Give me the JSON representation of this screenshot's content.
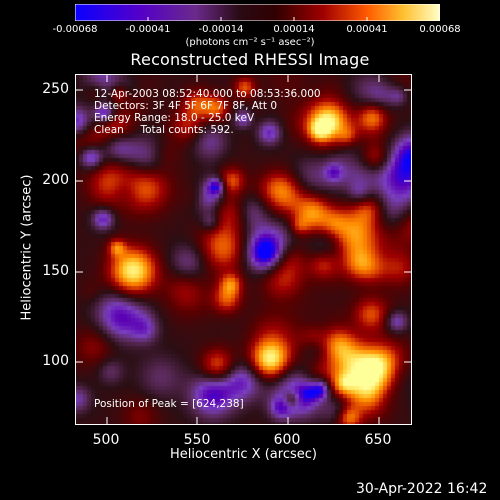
{
  "colorbar": {
    "ticks": [
      "-0.00068",
      "-0.00041",
      "-0.00014",
      "0.00014",
      "0.00041",
      "0.00068"
    ],
    "unit_label": "(photons cm⁻² s⁻¹ asec⁻²)"
  },
  "title": "Reconstructed RHESSI Image",
  "info": {
    "time": "12-Apr-2003 08:52:40.000 to 08:53:36.000",
    "detectors": "Detectors: 3F 4F 5F 6F 7F 8F, Att 0",
    "energy": "Energy Range: 18.0 - 25.0 keV",
    "clean": "Clean     Total counts: 592.",
    "peak": "Position of Peak = [624,238]"
  },
  "axes": {
    "xlabel": "Heliocentric X (arcsec)",
    "ylabel": "Heliocentric Y (arcsec)",
    "xticks": [
      "500",
      "550",
      "600",
      "650"
    ],
    "yticks": [
      "250",
      "200",
      "150",
      "100"
    ]
  },
  "footer": "30-Apr-2022 16:42",
  "colors": {
    "background": "#000000",
    "colormap": [
      "#0a00ff",
      "#5a00b4",
      "#7a3fbe",
      "#5a2a5a",
      "#2a0f14",
      "#5a0000",
      "#a00000",
      "#e04a00",
      "#ff8c00",
      "#ffd23c",
      "#ffff9a"
    ]
  }
}
